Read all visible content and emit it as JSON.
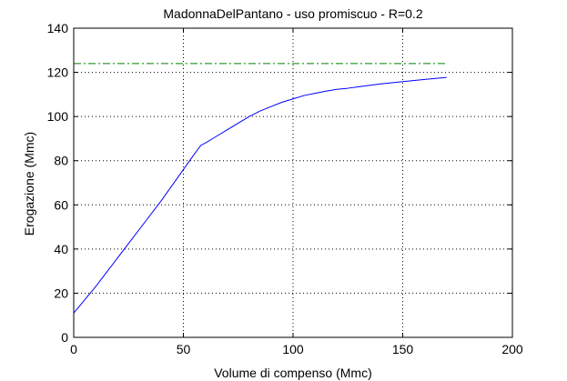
{
  "chart_data": {
    "type": "line",
    "title": "MadonnaDelPantano  -  uso promiscuo  -   R=0.2",
    "xlabel": "Volume di compenso (Mmc)",
    "ylabel": "Erogazione (Mmc)",
    "xlim": [
      0,
      200
    ],
    "ylim": [
      0,
      140
    ],
    "xticks": [
      0,
      50,
      100,
      150,
      200
    ],
    "yticks": [
      0,
      20,
      40,
      60,
      80,
      100,
      120,
      140
    ],
    "xtick_labels": [
      "0",
      "50",
      "100",
      "150",
      "200"
    ],
    "ytick_labels": [
      "0",
      "20",
      "40",
      "60",
      "80",
      "100",
      "120",
      "140"
    ],
    "grid": true,
    "grid_style": "dotted",
    "series": [
      {
        "color": "#0000ff",
        "style": "solid",
        "x": [
          0,
          10,
          20,
          30,
          40,
          50,
          55,
          58,
          60,
          65,
          70,
          75,
          80,
          85,
          90,
          95,
          100,
          105,
          110,
          115,
          120,
          125,
          130,
          140,
          150,
          160,
          170
        ],
        "y": [
          11,
          23,
          36,
          49,
          62,
          76,
          83,
          87,
          88,
          91,
          94,
          97,
          100,
          102.5,
          104.5,
          106.5,
          108,
          109.5,
          110.5,
          111.5,
          112.3,
          112.8,
          113.5,
          114.8,
          115.8,
          116.8,
          117.7
        ]
      },
      {
        "color": "#008000",
        "style": "dash-dot",
        "x": [
          0,
          170
        ],
        "y": [
          124,
          124
        ]
      }
    ]
  },
  "colors": {
    "axes": "#000000",
    "grid": "#000000",
    "background": "#ffffff"
  }
}
